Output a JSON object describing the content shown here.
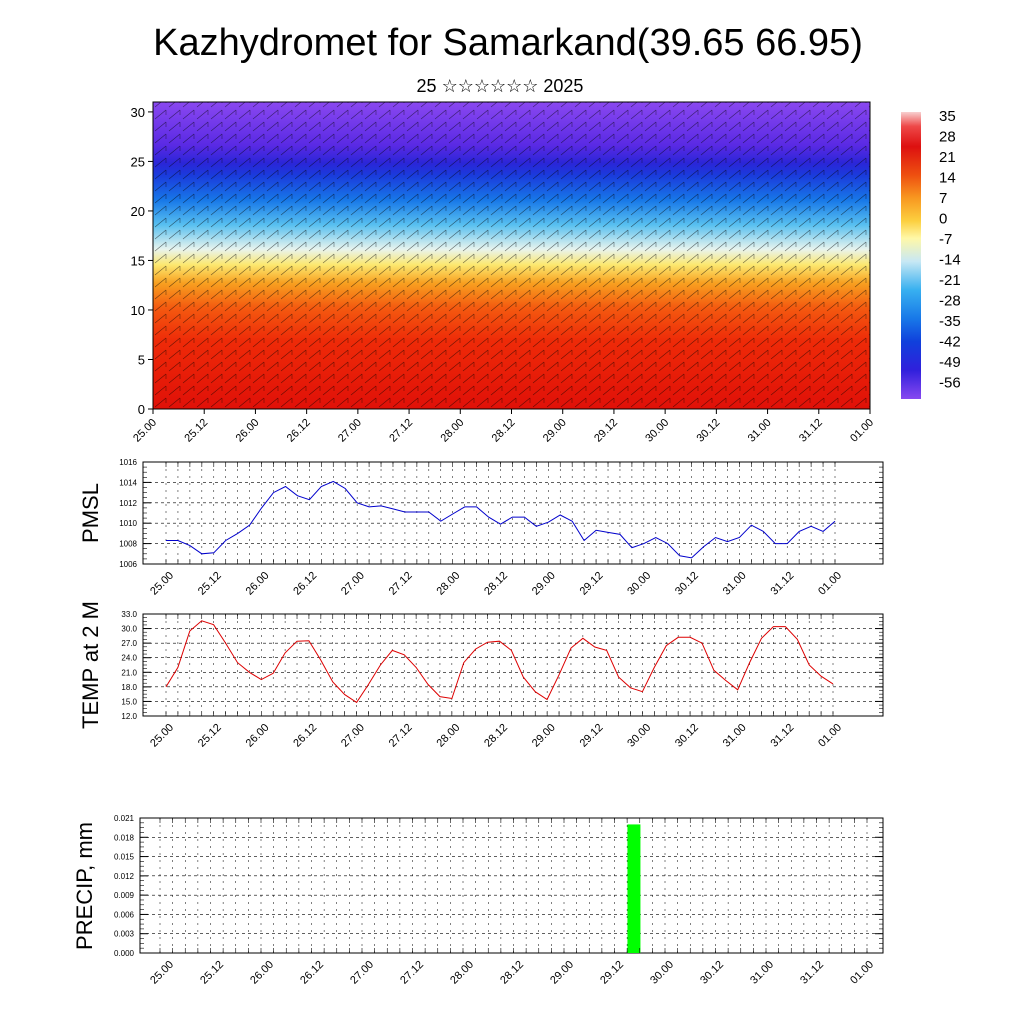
{
  "title": "Kazhydromet for Samarkand(39.65 66.95)",
  "subtitle": "25 ☆☆☆☆☆☆ 2025",
  "time_labels": [
    "25.00",
    "25.12",
    "26.00",
    "26.12",
    "27.00",
    "27.12",
    "28.00",
    "28.12",
    "29.00",
    "29.12",
    "30.00",
    "30.12",
    "31.00",
    "31.12",
    "01.00"
  ],
  "chart_data": [
    {
      "type": "heatmap",
      "title": "",
      "ylabel": "",
      "y_ticks": [
        0,
        5,
        10,
        15,
        20,
        25,
        30
      ],
      "ylim": [
        0,
        31
      ],
      "colorbar": {
        "labels": [
          "35",
          "28",
          "21",
          "14",
          "7",
          "0",
          "-7",
          "-14",
          "-21",
          "-28",
          "-35",
          "-42",
          "-49",
          "-56"
        ],
        "colors": [
          "#f8c8c8",
          "#ee4040",
          "#dd1010",
          "#ee5510",
          "#f89820",
          "#fcd040",
          "#fff6a0",
          "#d0ecf4",
          "#40b8f0",
          "#1888e8",
          "#1050e0",
          "#2020d8",
          "#5020e8",
          "#8040f0"
        ]
      },
      "values_description_free": true,
      "tropopause_level": 24.5,
      "warm_layer_top": 15,
      "colors": {
        "cold_top": "#7a3fe6",
        "tropo": "#2638e0",
        "mid_cold": "#44aeee",
        "freezing": "#fff6a0",
        "warm": "#f4a018",
        "hot": "#e41808"
      }
    },
    {
      "type": "line",
      "ylabel": "PMSL",
      "ylim": [
        1006,
        1016
      ],
      "y_ticks": [
        "1006",
        "1008",
        "1010",
        "1012",
        "1014",
        "1016"
      ],
      "color": "#0000cc",
      "series": [
        {
          "values": [
            1008.3,
            1008.3,
            1007.8,
            1007.0,
            1007.1,
            1008.3,
            1009.0,
            1009.8,
            1011.5,
            1013.0,
            1013.6,
            1012.7,
            1012.3,
            1013.6,
            1014.1,
            1013.4,
            1012.0,
            1011.6,
            1011.7,
            1011.4,
            1011.1,
            1011.1,
            1011.1,
            1010.2,
            1010.9,
            1011.6,
            1011.6,
            1010.6,
            1009.9,
            1010.6,
            1010.6,
            1009.7,
            1010.1,
            1010.8,
            1010.2,
            1008.3,
            1009.3,
            1009.1,
            1008.9,
            1007.6,
            1008.0,
            1008.6,
            1008.0,
            1006.8,
            1006.6,
            1007.7,
            1008.6,
            1008.2,
            1008.6,
            1009.8,
            1009.2,
            1008.0,
            1008.0,
            1009.2,
            1009.7,
            1009.2,
            1010.2
          ]
        }
      ]
    },
    {
      "type": "line",
      "ylabel": "TEMP at 2 M",
      "ylim": [
        12,
        33
      ],
      "y_ticks": [
        "12.0",
        "15.0",
        "18.0",
        "21.0",
        "24.0",
        "27.0",
        "30.0",
        "33.0"
      ],
      "color": "#dd0000",
      "series": [
        {
          "values": [
            18.0,
            22.0,
            29.5,
            31.6,
            30.8,
            27.0,
            23.0,
            21.0,
            19.5,
            20.8,
            25.0,
            27.4,
            27.5,
            23.5,
            19.0,
            16.4,
            14.8,
            18.5,
            22.5,
            25.5,
            24.6,
            22.0,
            18.5,
            16.0,
            15.6,
            23.0,
            25.8,
            27.2,
            27.4,
            25.5,
            20.0,
            17.0,
            15.4,
            20.5,
            26.0,
            28.0,
            26.2,
            25.5,
            20.0,
            17.8,
            17.0,
            22.0,
            26.5,
            28.2,
            28.2,
            27.0,
            21.4,
            19.3,
            17.4,
            23.0,
            28.0,
            30.4,
            30.4,
            27.8,
            22.5,
            20.2,
            18.6
          ]
        }
      ]
    },
    {
      "type": "bar",
      "ylabel": "PRECIP, mm",
      "ylim": [
        0,
        0.021
      ],
      "y_ticks": [
        "0.000",
        "0.003",
        "0.006",
        "0.009",
        "0.012",
        "0.015",
        "0.018",
        "0.021"
      ],
      "color": "#00ff00",
      "bars": [
        {
          "x_index": 37.5,
          "value": 0.02
        }
      ]
    }
  ]
}
